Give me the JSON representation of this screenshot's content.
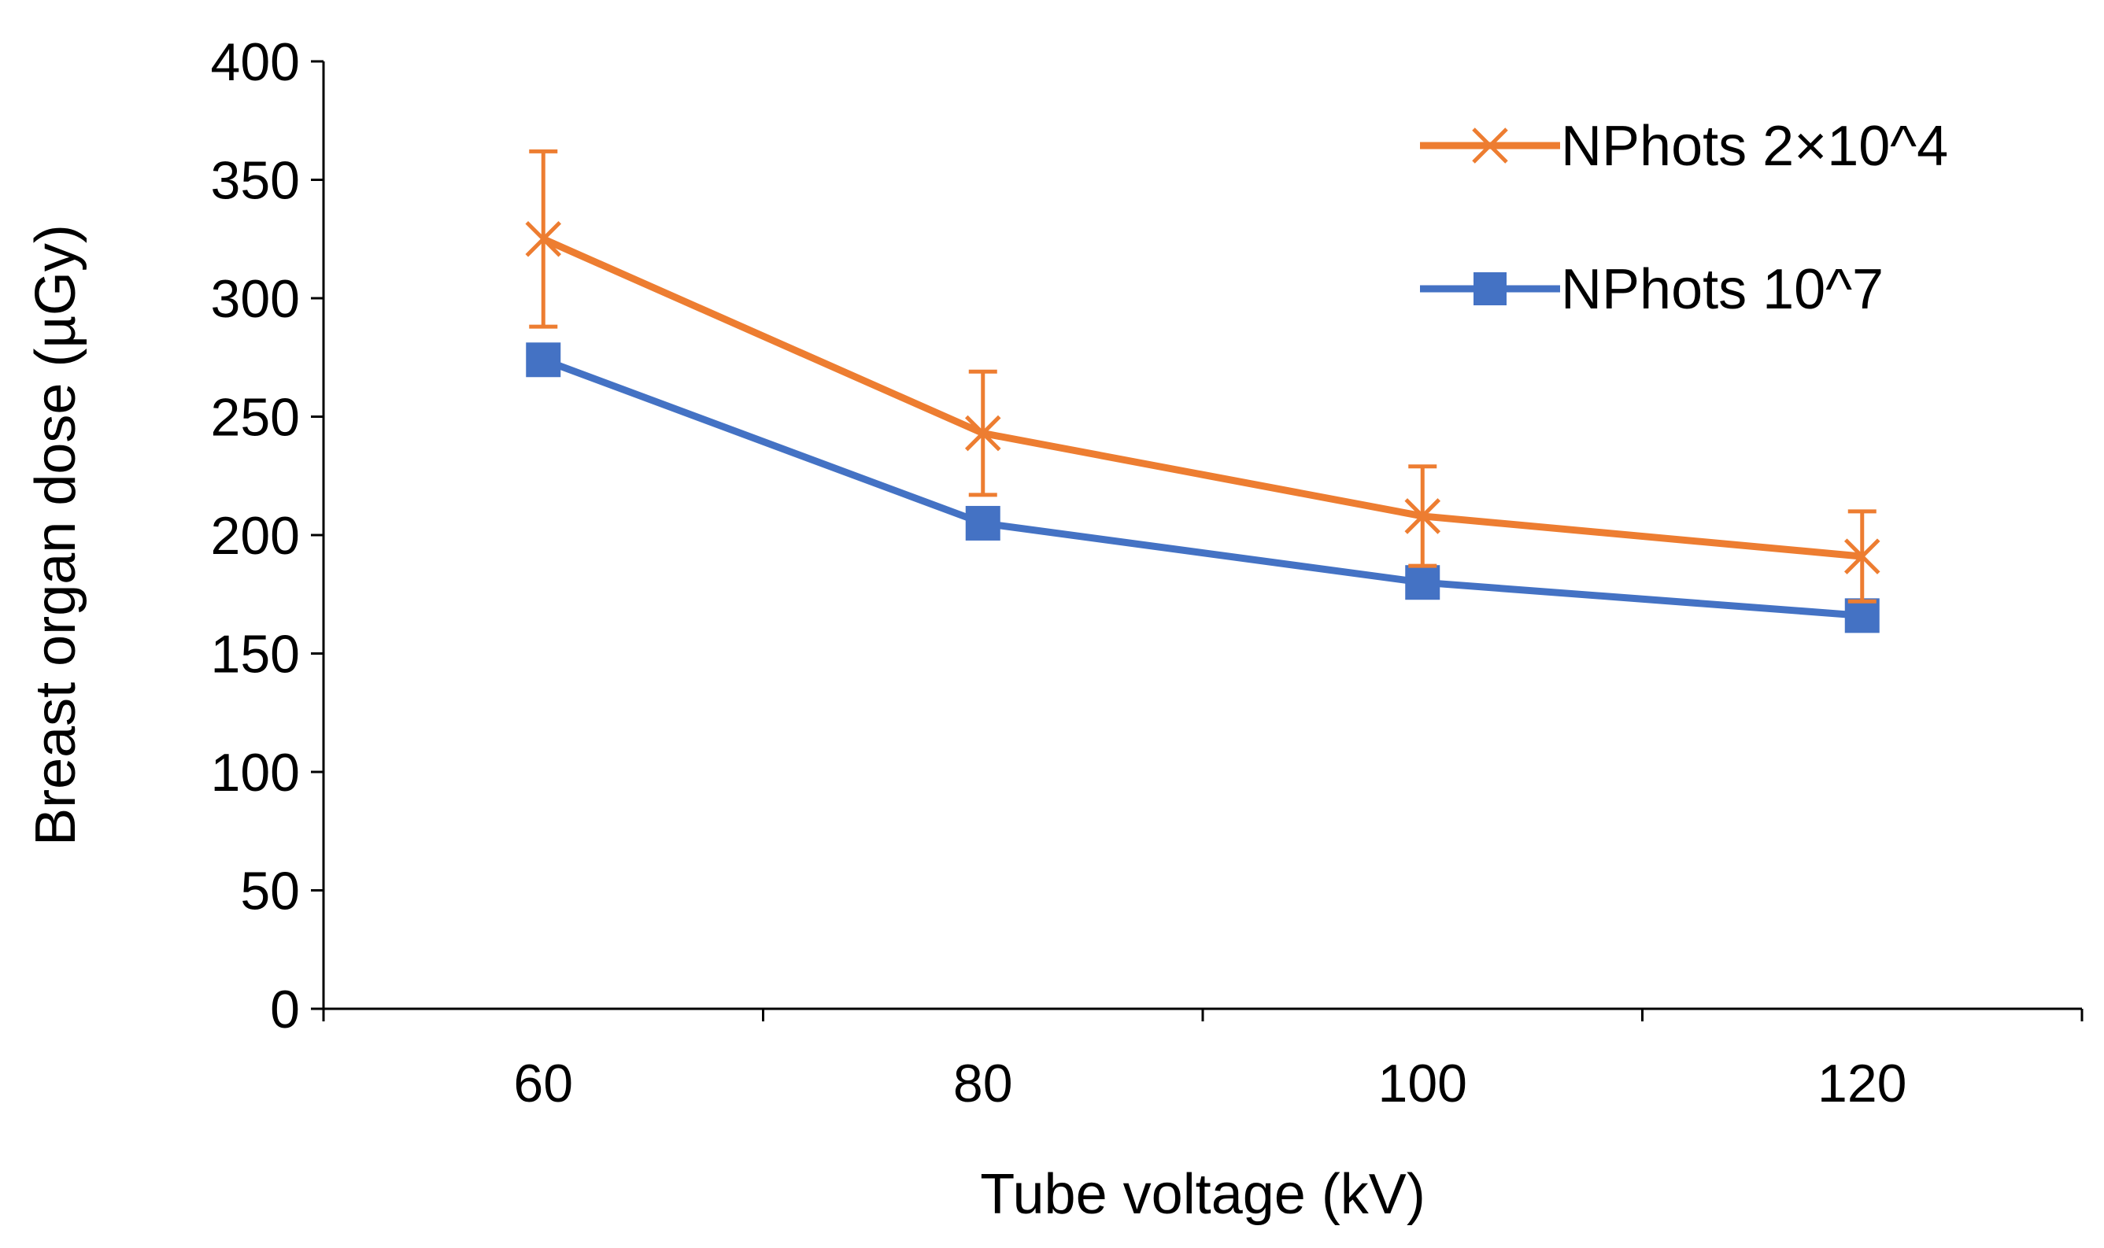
{
  "chart_data": {
    "type": "line",
    "title": "",
    "xlabel": "Tube voltage (kV)",
    "ylabel": "Breast organ dose  (µGy)",
    "xlim": [
      50,
      130
    ],
    "ylim": [
      0,
      400
    ],
    "x": [
      60,
      80,
      100,
      120
    ],
    "x_ticks": [
      60,
      80,
      100,
      120
    ],
    "y_ticks": [
      0,
      50,
      100,
      150,
      200,
      250,
      300,
      350,
      400
    ],
    "x_tick_labels": [
      "60",
      "80",
      "100",
      "120"
    ],
    "y_tick_labels": [
      "0",
      "50",
      "100",
      "150",
      "200",
      "250",
      "300",
      "350",
      "400"
    ],
    "grid": false,
    "legend_position": "top-right",
    "series": [
      {
        "name": "NPhots 2×10^4",
        "color": "#ED7D31",
        "marker": "x",
        "values": [
          325,
          243,
          208,
          191
        ],
        "error_bars": [
          37,
          26,
          21,
          19
        ]
      },
      {
        "name": "NPhots 10^7",
        "color": "#4472C4",
        "marker": "square",
        "values": [
          274,
          205,
          180,
          166
        ]
      }
    ]
  }
}
